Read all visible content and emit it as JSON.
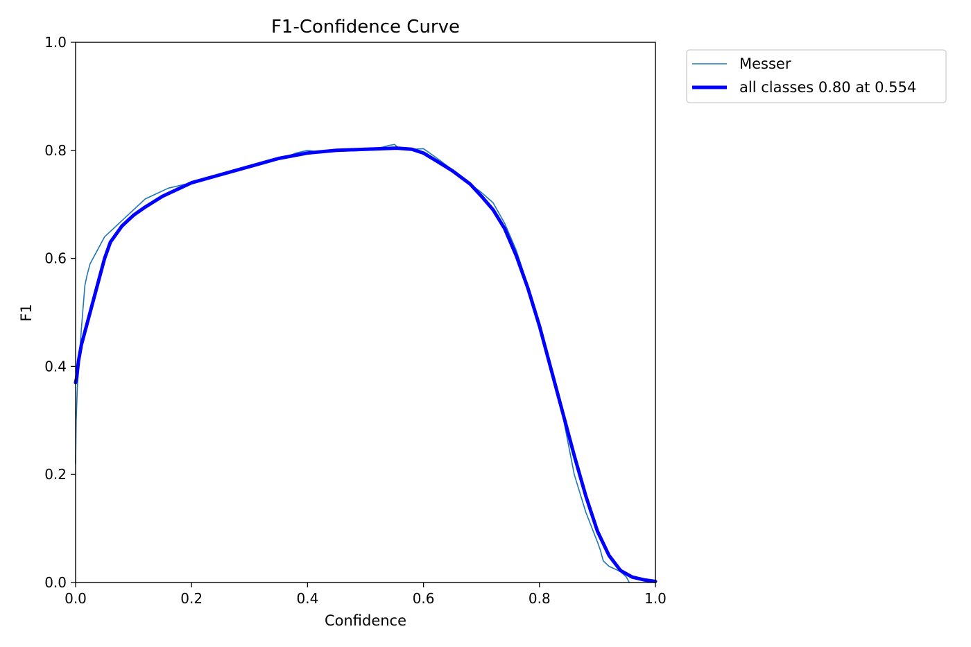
{
  "chart_data": {
    "type": "line",
    "title": "F1-Confidence Curve",
    "xlabel": "Confidence",
    "ylabel": "F1",
    "xlim": [
      0.0,
      1.0
    ],
    "ylim": [
      0.0,
      1.0
    ],
    "xticks": [
      "0.0",
      "0.2",
      "0.4",
      "0.6",
      "0.8",
      "1.0"
    ],
    "yticks": [
      "0.0",
      "0.2",
      "0.4",
      "0.6",
      "0.8",
      "1.0"
    ],
    "grid": false,
    "legend_position": "outside-top-right",
    "series": [
      {
        "name": "Messer",
        "color": "#1f77b4",
        "x": [
          0.0,
          0.001,
          0.003,
          0.005,
          0.008,
          0.01,
          0.013,
          0.016,
          0.02,
          0.025,
          0.03,
          0.035,
          0.04,
          0.045,
          0.05,
          0.06,
          0.07,
          0.08,
          0.09,
          0.1,
          0.12,
          0.14,
          0.16,
          0.18,
          0.2,
          0.25,
          0.3,
          0.35,
          0.38,
          0.4,
          0.42,
          0.45,
          0.5,
          0.53,
          0.54,
          0.55,
          0.555,
          0.56,
          0.58,
          0.6,
          0.62,
          0.65,
          0.68,
          0.7,
          0.72,
          0.74,
          0.75,
          0.76,
          0.78,
          0.8,
          0.82,
          0.84,
          0.86,
          0.88,
          0.9,
          0.905,
          0.91,
          0.92,
          0.93,
          0.94,
          0.95,
          0.955
        ],
        "y": [
          0.22,
          0.3,
          0.36,
          0.4,
          0.44,
          0.47,
          0.51,
          0.55,
          0.57,
          0.59,
          0.6,
          0.61,
          0.62,
          0.63,
          0.64,
          0.65,
          0.66,
          0.67,
          0.68,
          0.69,
          0.71,
          0.72,
          0.73,
          0.735,
          0.74,
          0.757,
          0.77,
          0.783,
          0.795,
          0.8,
          0.797,
          0.8,
          0.801,
          0.806,
          0.809,
          0.811,
          0.806,
          0.804,
          0.802,
          0.803,
          0.788,
          0.764,
          0.738,
          0.722,
          0.703,
          0.665,
          0.64,
          0.615,
          0.55,
          0.48,
          0.4,
          0.31,
          0.2,
          0.13,
          0.075,
          0.06,
          0.04,
          0.03,
          0.025,
          0.02,
          0.01,
          0.0
        ]
      },
      {
        "name": "all classes 0.80 at 0.554",
        "color": "#0000ff",
        "x": [
          0.0,
          0.002,
          0.005,
          0.01,
          0.02,
          0.03,
          0.04,
          0.05,
          0.06,
          0.07,
          0.08,
          0.1,
          0.12,
          0.15,
          0.2,
          0.25,
          0.3,
          0.35,
          0.4,
          0.45,
          0.5,
          0.554,
          0.58,
          0.6,
          0.62,
          0.65,
          0.68,
          0.7,
          0.72,
          0.74,
          0.76,
          0.78,
          0.8,
          0.82,
          0.84,
          0.86,
          0.88,
          0.9,
          0.92,
          0.94,
          0.96,
          0.98,
          1.0
        ],
        "y": [
          0.37,
          0.38,
          0.41,
          0.44,
          0.48,
          0.52,
          0.56,
          0.6,
          0.63,
          0.645,
          0.66,
          0.68,
          0.695,
          0.715,
          0.74,
          0.755,
          0.77,
          0.785,
          0.795,
          0.8,
          0.802,
          0.804,
          0.802,
          0.795,
          0.782,
          0.762,
          0.738,
          0.715,
          0.69,
          0.655,
          0.605,
          0.545,
          0.475,
          0.395,
          0.315,
          0.235,
          0.16,
          0.095,
          0.05,
          0.022,
          0.01,
          0.005,
          0.002
        ]
      }
    ]
  }
}
